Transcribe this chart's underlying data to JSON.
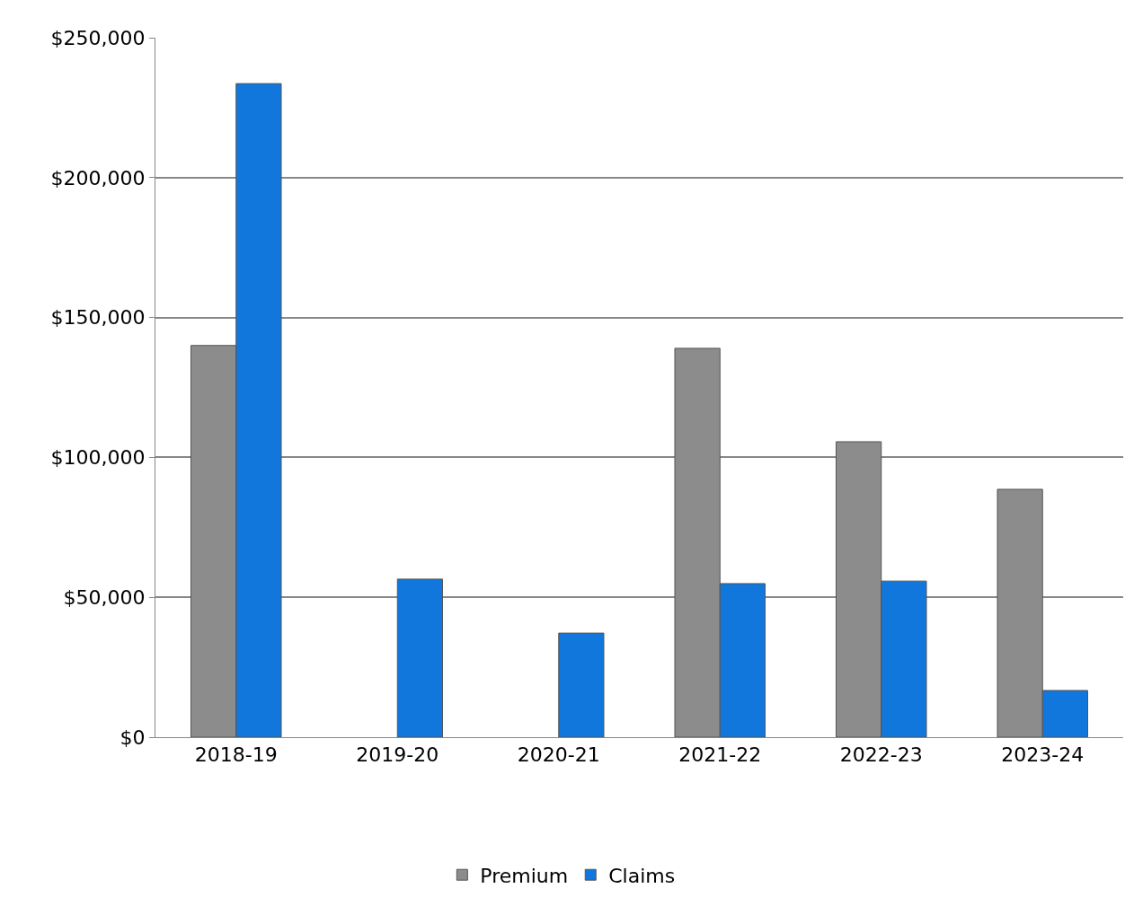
{
  "chart_data": {
    "type": "bar",
    "categories": [
      "2018-19",
      "2019-20",
      "2020-21",
      "2021-22",
      "2022-23",
      "2023-24"
    ],
    "series": [
      {
        "name": "Premium",
        "color": "#8c8c8c",
        "values": [
          140000,
          null,
          null,
          139000,
          105600,
          88600
        ]
      },
      {
        "name": "Claims",
        "color": "#1177dd",
        "values": [
          233600,
          56500,
          37200,
          54900,
          55800,
          16700
        ]
      }
    ],
    "ylim": [
      0,
      250000
    ],
    "yticks": [
      {
        "value": 0,
        "label": "$0"
      },
      {
        "value": 50000,
        "label": "$50,000"
      },
      {
        "value": 100000,
        "label": "$100,000"
      },
      {
        "value": 150000,
        "label": "$150,000"
      },
      {
        "value": 200000,
        "label": "$200,000"
      },
      {
        "value": 250000,
        "label": "$250,000"
      }
    ],
    "grid": "y",
    "legend": "bottom"
  }
}
